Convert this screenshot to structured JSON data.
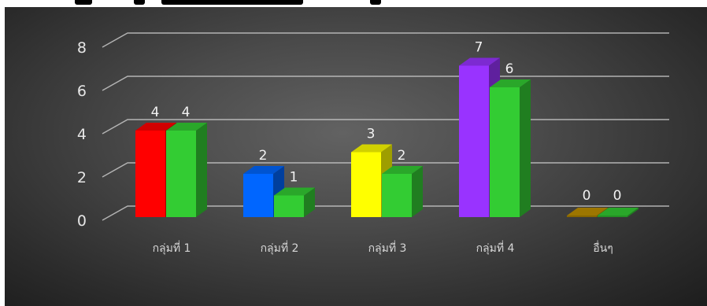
{
  "chart_data": {
    "type": "bar",
    "categories": [
      "กลุ่มที่ 1",
      "กลุ่มที่ 2",
      "กลุ่มที่ 3",
      "กลุ่มที่ 4",
      "อื่นๆ"
    ],
    "series": [
      {
        "values": [
          4,
          2,
          3,
          7,
          0
        ]
      },
      {
        "values": [
          4,
          1,
          2,
          6,
          0
        ]
      }
    ],
    "ylim": [
      0,
      8
    ],
    "yticks": [
      "0",
      "2",
      "4",
      "6",
      "8"
    ],
    "grid": true,
    "legend": "none",
    "colors": {
      "series1": [
        "#ff0000",
        "#0066ff",
        "#ffff00",
        "#9933ff",
        "#c09000"
      ],
      "series2": "#33cc33",
      "gridline": "#c8c8c8"
    }
  }
}
